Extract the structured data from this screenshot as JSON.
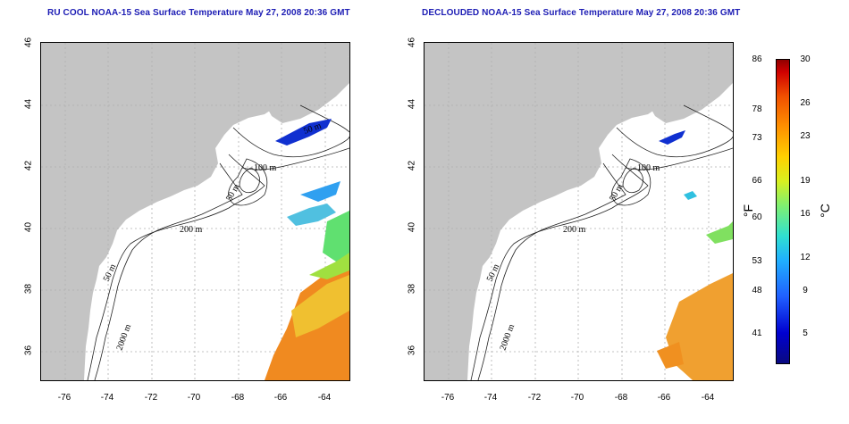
{
  "titles": {
    "left": "RU COOL NOAA-15 Sea Surface Temperature May 27, 2008 20:36 GMT",
    "right": "DECLOUDED NOAA-15 Sea Surface Temperature May 27, 2008 20:36 GMT"
  },
  "axes": {
    "lat_ticks": [
      "46",
      "44",
      "42",
      "40",
      "38",
      "36"
    ],
    "lon_ticks": [
      "-76",
      "-74",
      "-72",
      "-70",
      "-68",
      "-66",
      "-64"
    ]
  },
  "contours": {
    "left": [
      "100 m",
      "50 m",
      "200 m",
      "50 m",
      "2000 m",
      "50 m"
    ],
    "right": [
      "100 m",
      "50 m",
      "200 m",
      "50 m",
      "2000 m"
    ]
  },
  "colorbar": {
    "fahrenheit": [
      "86",
      "78",
      "73",
      "66",
      "60",
      "53",
      "48",
      "41"
    ],
    "celsius": [
      "30",
      "26",
      "23",
      "19",
      "16",
      "12",
      "9",
      "5"
    ],
    "unit_f": "°F",
    "unit_c": "°C"
  },
  "colors": {
    "land": "#c4c4c4",
    "title": "#1c1cb4",
    "grid": "#b0b0b0"
  }
}
